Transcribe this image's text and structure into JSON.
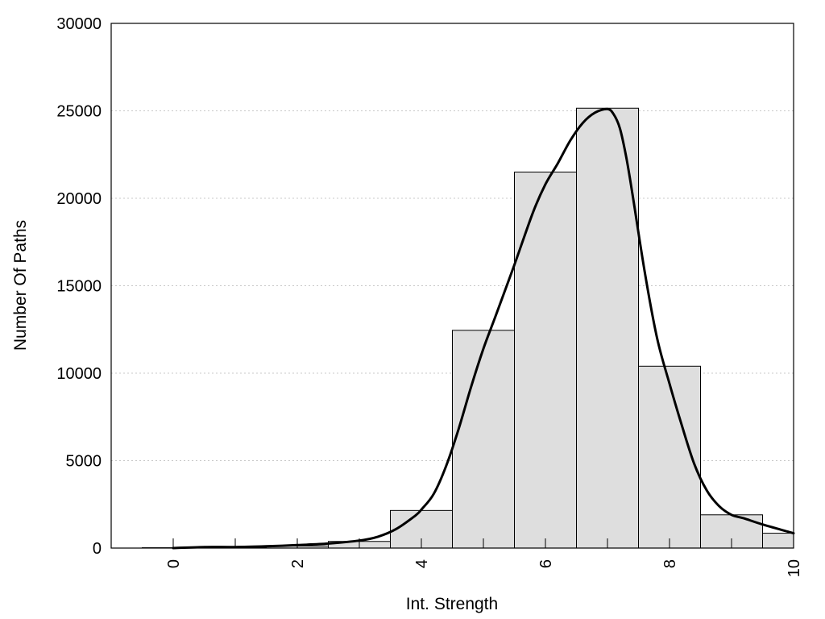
{
  "chart_data": {
    "type": "bar",
    "title": "",
    "xlabel": "Int. Strength",
    "ylabel": "Number Of Paths",
    "xlim": [
      -1,
      10
    ],
    "ylim": [
      0,
      30000
    ],
    "x_ticks": [
      "0",
      "2",
      "4",
      "6",
      "8",
      "10"
    ],
    "y_ticks": [
      "0",
      "5000",
      "10000",
      "15000",
      "20000",
      "25000",
      "30000"
    ],
    "minor_x_ticks": [
      0,
      1,
      2,
      3,
      4,
      5,
      6,
      7,
      8,
      9,
      10
    ],
    "grid": "horizontal dotted",
    "bin_width": 1,
    "bars": {
      "centers": [
        0,
        1,
        2,
        3,
        4,
        5,
        6,
        7,
        8,
        9,
        10
      ],
      "values": [
        20,
        40,
        120,
        380,
        2150,
        12450,
        21500,
        25150,
        10400,
        1900,
        850
      ]
    },
    "density_curve": {
      "x": [
        0,
        0.5,
        1,
        1.5,
        2,
        2.5,
        3,
        3.3,
        3.6,
        3.9,
        4,
        4.2,
        4.4,
        4.6,
        4.8,
        5,
        5.2,
        5.5,
        5.8,
        6,
        6.2,
        6.4,
        6.6,
        6.8,
        7,
        7.1,
        7.2,
        7.3,
        7.4,
        7.6,
        7.8,
        8,
        8.2,
        8.4,
        8.6,
        8.8,
        9,
        9.2,
        9.5,
        10
      ],
      "y": [
        0,
        60,
        60,
        100,
        170,
        260,
        430,
        650,
        1100,
        1850,
        2200,
        3100,
        4700,
        6800,
        9200,
        11400,
        13300,
        16200,
        19200,
        20800,
        22000,
        23300,
        24300,
        24900,
        25100,
        24800,
        24000,
        22400,
        20300,
        15800,
        12000,
        9400,
        7000,
        4800,
        3300,
        2400,
        1900,
        1700,
        1350,
        850
      ]
    },
    "colors": {
      "bar_fill": "#dedede",
      "bar_stroke": "#000000",
      "line": "#000000",
      "grid": "#c8c8c8"
    }
  }
}
